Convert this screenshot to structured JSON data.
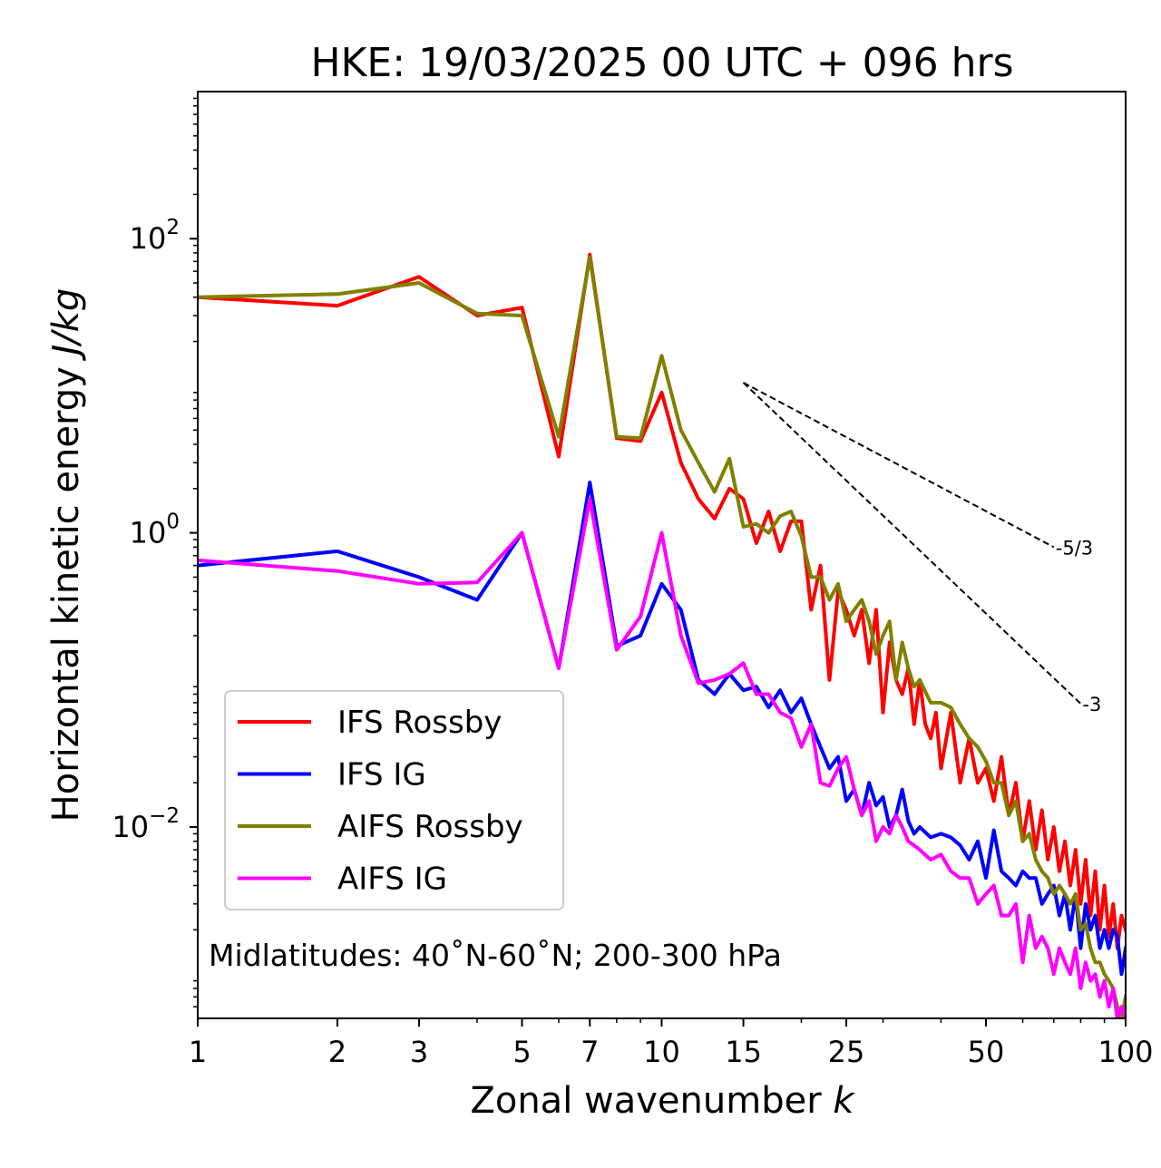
{
  "chart_data": {
    "type": "line",
    "title": "HKE: 19/03/2025 00 UTC + 096 hrs",
    "xlabel": "Zonal wavenumber",
    "xlabel_italic": "k",
    "ylabel": "Horizontal kinetic energy",
    "ylabel_italic": "J/kg",
    "xscale": "log",
    "yscale": "log",
    "xlim": [
      1,
      100
    ],
    "ylim": [
      0.0005,
      1000
    ],
    "x_ticks": [
      1,
      2,
      3,
      5,
      7,
      10,
      15,
      25,
      50,
      100
    ],
    "x_tick_labels": [
      "1",
      "2",
      "3",
      "5",
      "7",
      "10",
      "15",
      "25",
      "50",
      "100"
    ],
    "y_ticks": [
      0.01,
      1,
      100
    ],
    "y_tick_base": "10",
    "y_tick_exponents": [
      "−2",
      "0",
      "2"
    ],
    "legend_position": "lower-left",
    "annotation": "Midlatitudes: 40˚N-60˚N; 200-300 hPa",
    "reference_lines": [
      {
        "label": "-5/3",
        "slope": -1.6667,
        "x": [
          15,
          70
        ],
        "y": [
          10.5,
          0.8
        ]
      },
      {
        "label": "-3",
        "slope": -3,
        "x": [
          15,
          80
        ],
        "y": [
          10.5,
          0.069
        ]
      }
    ],
    "series": [
      {
        "name": "IFS Rossby",
        "color": "#ff0000",
        "x": [
          1,
          2,
          3,
          4,
          5,
          6,
          7,
          8,
          9,
          10,
          11,
          12,
          13,
          14,
          15,
          16,
          17,
          18,
          19,
          20,
          21,
          22,
          23,
          24,
          25,
          26,
          27,
          28,
          29,
          30,
          31,
          32,
          33,
          34,
          35,
          36,
          37,
          38,
          39,
          40,
          42,
          44,
          46,
          48,
          50,
          52,
          54,
          56,
          58,
          60,
          62,
          64,
          66,
          68,
          70,
          72,
          74,
          76,
          78,
          80,
          82,
          84,
          86,
          88,
          90,
          92,
          94,
          96,
          98,
          100
        ],
        "values": [
          40,
          35,
          55,
          30,
          34,
          3.3,
          78,
          4.4,
          4.2,
          9,
          3,
          1.7,
          1.25,
          2,
          1.7,
          0.85,
          1.4,
          0.75,
          1.2,
          1.2,
          0.3,
          0.6,
          0.1,
          0.4,
          0.3,
          0.2,
          0.3,
          0.13,
          0.3,
          0.06,
          0.18,
          0.1,
          0.08,
          0.12,
          0.05,
          0.1,
          0.05,
          0.04,
          0.06,
          0.025,
          0.06,
          0.02,
          0.04,
          0.02,
          0.025,
          0.015,
          0.03,
          0.012,
          0.02,
          0.008,
          0.015,
          0.007,
          0.013,
          0.006,
          0.01,
          0.005,
          0.008,
          0.004,
          0.007,
          0.003,
          0.006,
          0.0025,
          0.005,
          0.002,
          0.004,
          0.0018,
          0.003,
          0.0015,
          0.0025,
          0.002
        ]
      },
      {
        "name": "IFS IG",
        "color": "#0000ff",
        "x": [
          1,
          2,
          3,
          4,
          5,
          6,
          7,
          8,
          9,
          10,
          11,
          12,
          13,
          14,
          15,
          16,
          17,
          18,
          19,
          20,
          21,
          22,
          23,
          24,
          25,
          26,
          27,
          28,
          29,
          30,
          31,
          32,
          33,
          34,
          35,
          36,
          38,
          40,
          42,
          44,
          46,
          48,
          50,
          52,
          54,
          56,
          58,
          60,
          62,
          64,
          66,
          68,
          70,
          72,
          74,
          76,
          78,
          80,
          82,
          84,
          86,
          88,
          90,
          92,
          94,
          96,
          98,
          100
        ],
        "values": [
          0.6,
          0.75,
          0.5,
          0.35,
          1,
          0.12,
          2.2,
          0.17,
          0.2,
          0.45,
          0.3,
          0.1,
          0.08,
          0.11,
          0.085,
          0.09,
          0.065,
          0.085,
          0.06,
          0.075,
          0.05,
          0.035,
          0.025,
          0.03,
          0.015,
          0.018,
          0.012,
          0.02,
          0.014,
          0.016,
          0.01,
          0.012,
          0.018,
          0.011,
          0.009,
          0.01,
          0.0085,
          0.009,
          0.0085,
          0.0075,
          0.006,
          0.008,
          0.0045,
          0.0095,
          0.005,
          0.0045,
          0.004,
          0.005,
          0.0045,
          0.0045,
          0.003,
          0.0035,
          0.004,
          0.0025,
          0.0035,
          0.002,
          0.0035,
          0.0015,
          0.003,
          0.002,
          0.0025,
          0.0015,
          0.002,
          0.0015,
          0.002,
          0.0018,
          0.001,
          0.0015
        ]
      },
      {
        "name": "AIFS Rossby",
        "color": "#808000",
        "x": [
          1,
          2,
          3,
          4,
          5,
          6,
          7,
          8,
          9,
          10,
          11,
          12,
          13,
          14,
          15,
          16,
          17,
          18,
          19,
          20,
          21,
          22,
          23,
          24,
          25,
          26,
          27,
          28,
          29,
          30,
          31,
          32,
          33,
          34,
          35,
          36,
          38,
          40,
          42,
          44,
          46,
          48,
          50,
          52,
          54,
          56,
          58,
          60,
          62,
          64,
          66,
          68,
          70,
          72,
          74,
          76,
          78,
          80,
          82,
          84,
          86,
          88,
          90,
          92,
          94,
          96,
          98,
          100
        ],
        "values": [
          40,
          42,
          50,
          31,
          30,
          4.5,
          75,
          4.5,
          4.4,
          16,
          5,
          3,
          1.9,
          3.2,
          1.1,
          1.15,
          1,
          1.3,
          1.4,
          0.95,
          0.5,
          0.5,
          0.35,
          0.45,
          0.25,
          0.3,
          0.35,
          0.25,
          0.15,
          0.2,
          0.25,
          0.1,
          0.18,
          0.12,
          0.09,
          0.1,
          0.07,
          0.07,
          0.065,
          0.05,
          0.04,
          0.035,
          0.028,
          0.02,
          0.02,
          0.012,
          0.015,
          0.008,
          0.009,
          0.006,
          0.005,
          0.0045,
          0.0035,
          0.004,
          0.0035,
          0.003,
          0.0035,
          0.002,
          0.0022,
          0.0015,
          0.0012,
          0.0012,
          0.001,
          0.0009,
          0.0008,
          0.0006,
          0.0005,
          0.0007
        ]
      },
      {
        "name": "AIFS IG",
        "color": "#ff00ff",
        "x": [
          1,
          2,
          3,
          4,
          5,
          6,
          7,
          8,
          9,
          10,
          11,
          12,
          13,
          14,
          15,
          16,
          17,
          18,
          19,
          20,
          21,
          22,
          23,
          24,
          25,
          26,
          27,
          28,
          29,
          30,
          31,
          32,
          33,
          34,
          35,
          36,
          38,
          40,
          42,
          44,
          46,
          48,
          50,
          52,
          54,
          56,
          58,
          60,
          62,
          64,
          66,
          68,
          70,
          72,
          74,
          76,
          78,
          80,
          82,
          84,
          86,
          88,
          90,
          92,
          94,
          96,
          98,
          100
        ],
        "values": [
          0.65,
          0.55,
          0.45,
          0.46,
          1,
          0.12,
          1.7,
          0.16,
          0.27,
          1,
          0.2,
          0.095,
          0.1,
          0.11,
          0.13,
          0.08,
          0.08,
          0.06,
          0.055,
          0.035,
          0.05,
          0.02,
          0.019,
          0.025,
          0.03,
          0.018,
          0.012,
          0.015,
          0.008,
          0.01,
          0.009,
          0.012,
          0.01,
          0.008,
          0.0075,
          0.007,
          0.006,
          0.0065,
          0.005,
          0.0045,
          0.0045,
          0.003,
          0.0035,
          0.004,
          0.0025,
          0.0025,
          0.003,
          0.0012,
          0.0025,
          0.0015,
          0.0018,
          0.0015,
          0.001,
          0.0015,
          0.0012,
          0.001,
          0.0015,
          0.0008,
          0.0012,
          0.0009,
          0.001,
          0.0007,
          0.0009,
          0.0006,
          0.0008,
          0.0005,
          0.0006,
          0.0005
        ]
      }
    ]
  }
}
